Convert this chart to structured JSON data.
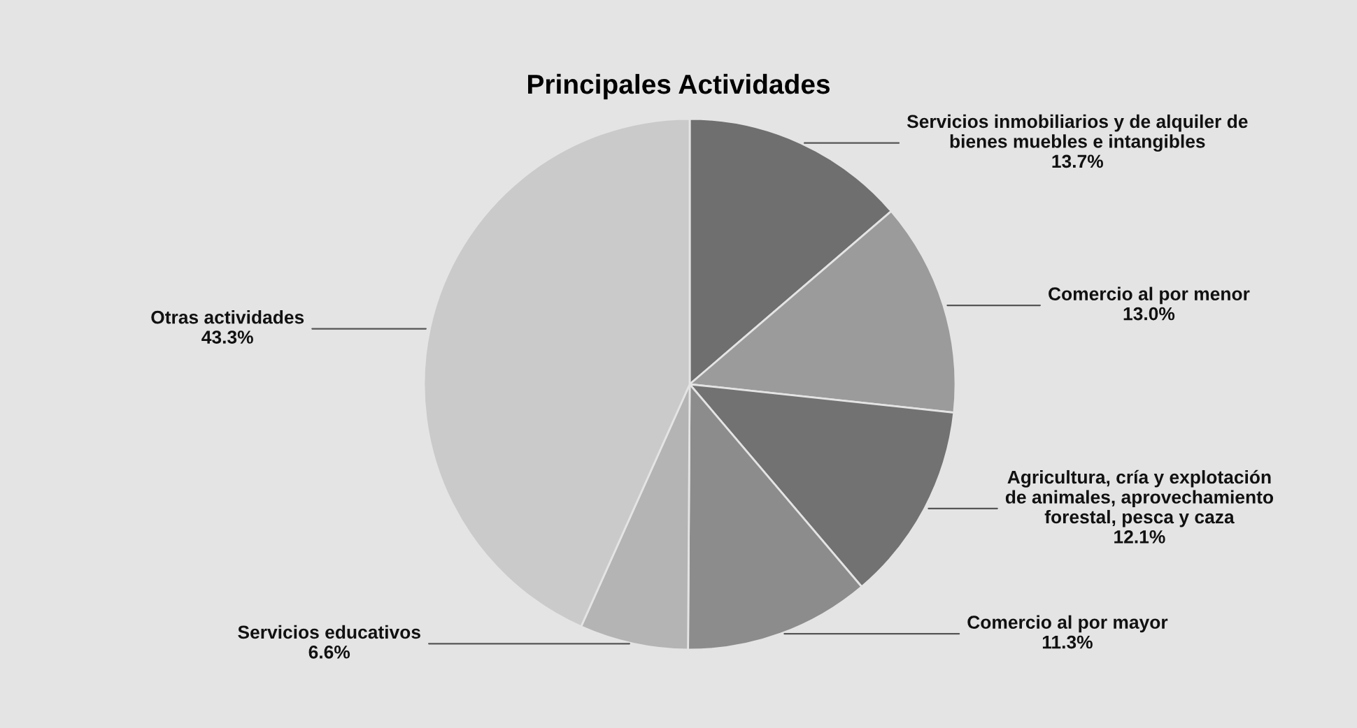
{
  "chart_data": {
    "type": "pie",
    "title": "Principales Actividades",
    "categories": [
      "Servicios inmobiliarios y de alquiler de\nbienes muebles e intangibles",
      "Comercio al por menor",
      "Agricultura, cría y explotación\nde animales, aprovechamiento\nforestal, pesca y caza",
      "Comercio al por mayor",
      "Servicios educativos",
      "Otras actividades"
    ],
    "values": [
      13.7,
      13.0,
      12.1,
      11.3,
      6.6,
      43.3
    ],
    "value_labels": [
      "13.7%",
      "13.0%",
      "12.1%",
      "11.3%",
      "6.6%",
      "43.3%"
    ],
    "colors": [
      "#6f6f6f",
      "#9b9b9b",
      "#727272",
      "#8c8c8c",
      "#b4b4b4",
      "#cacaca"
    ],
    "legend": false
  }
}
